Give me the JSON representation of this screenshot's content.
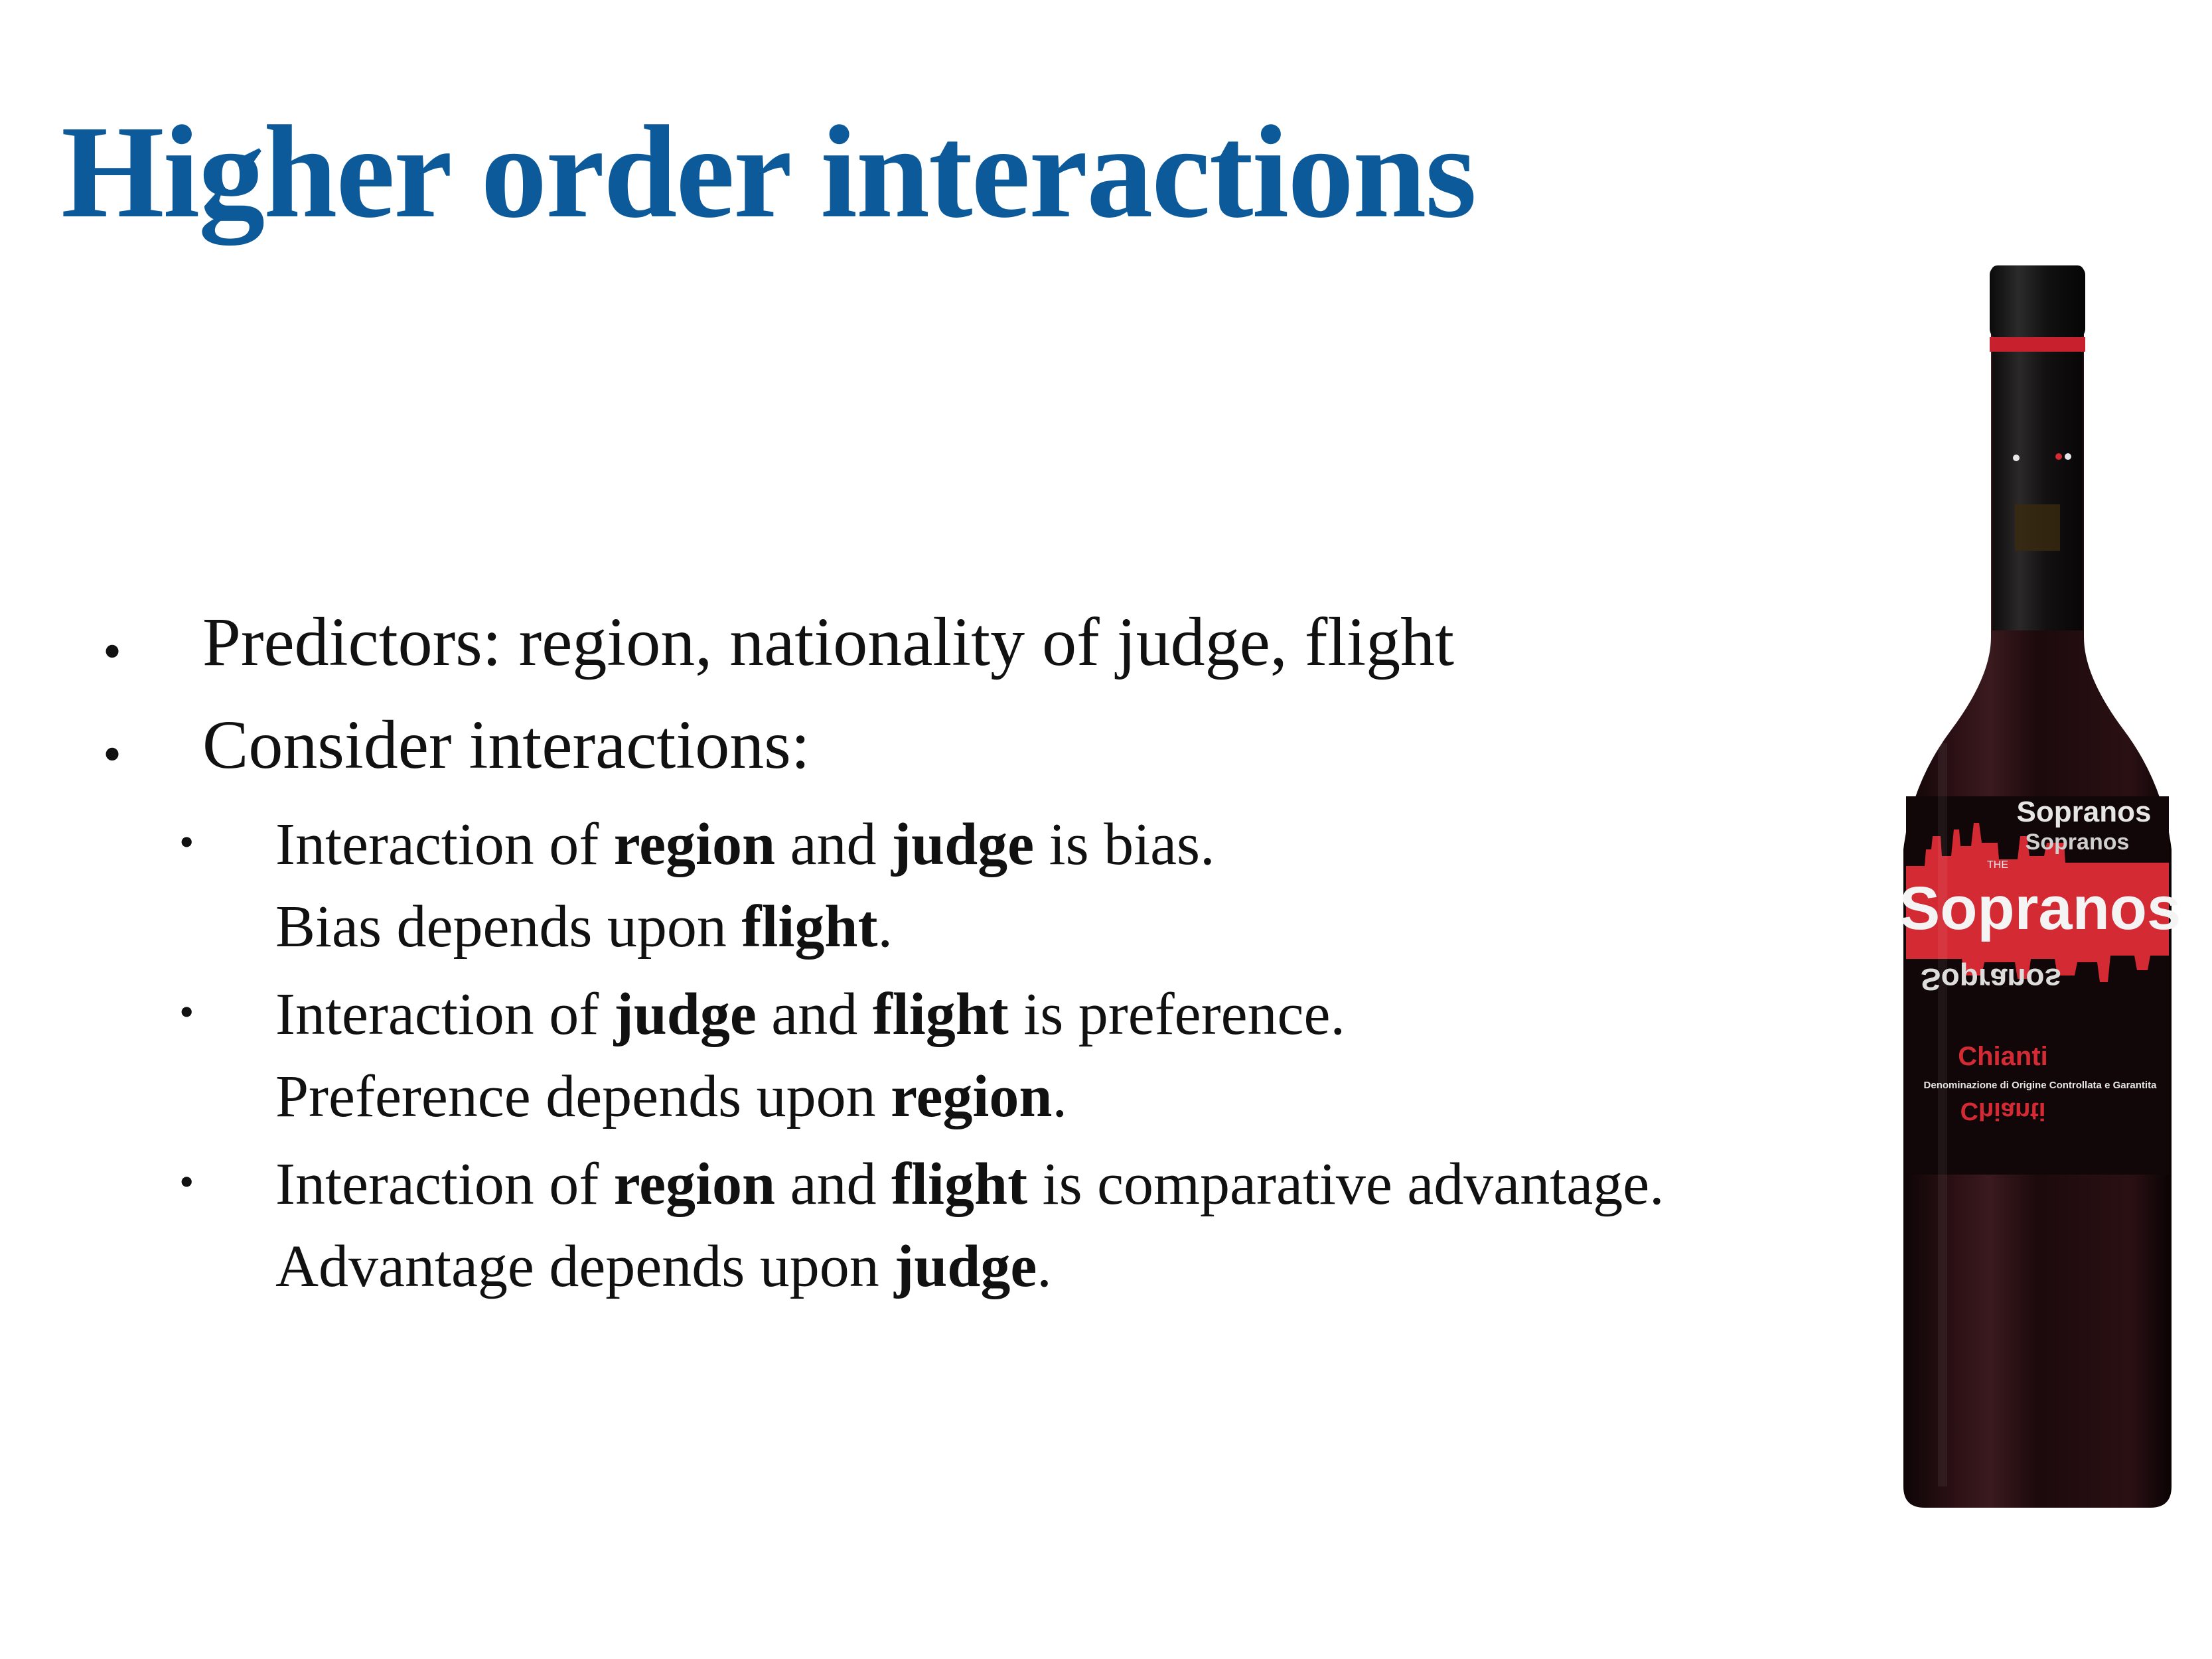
{
  "slide": {
    "title": "Higher order interactions"
  },
  "bullets": [
    {
      "text": "Predictors: region, nationality of judge, flight"
    },
    {
      "text": "Consider interactions:"
    }
  ],
  "sub_bullets": [
    {
      "line1": {
        "pre": "Interaction of ",
        "b1": "region",
        "mid": " and ",
        "b2": "judge",
        "post": " is bias."
      },
      "line2": {
        "pre": "Bias depends upon ",
        "b": "flight",
        "post": "."
      }
    },
    {
      "line1": {
        "pre": "Interaction of ",
        "b1": "judge",
        "mid": " and ",
        "b2": "flight",
        "post": " is preference."
      },
      "line2": {
        "pre": "Preference depends upon ",
        "b": "region",
        "post": "."
      }
    },
    {
      "line1": {
        "pre": "Interaction of ",
        "b1": "region",
        "mid": " and ",
        "b2": "flight",
        "post": " is comparative advantage."
      },
      "line2": {
        "pre": "Advantage depends upon ",
        "b": "judge",
        "post": "."
      }
    }
  ],
  "bullet_glyph": "•",
  "image": {
    "label_brand": "Sopranos",
    "label_small": "THE",
    "label_wine": "Chianti",
    "label_denomination": "Denominazione di Origine Controllata e Garantita",
    "colors": {
      "bottle": "#1a0b0d",
      "label_red": "#d42a34",
      "cap_red": "#c8202c"
    }
  }
}
